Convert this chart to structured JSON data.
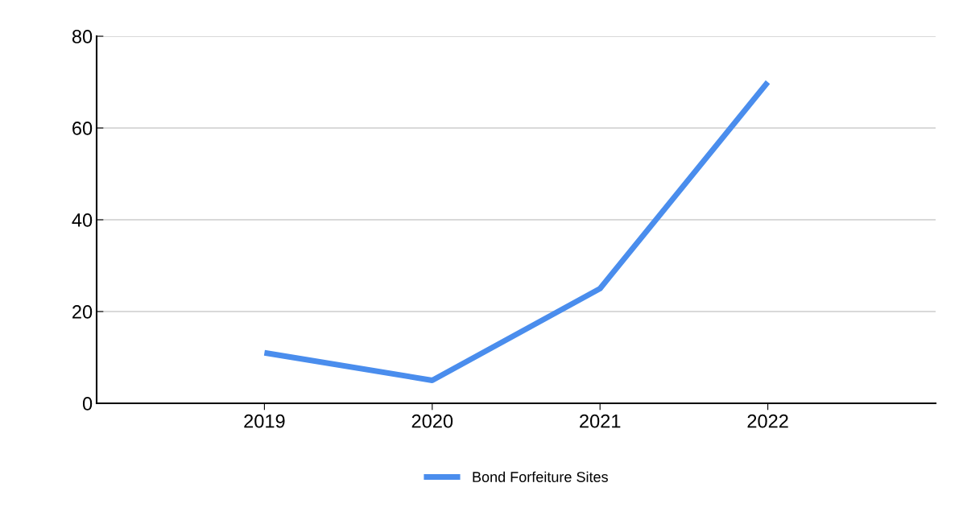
{
  "chart_data": {
    "type": "line",
    "categories": [
      "2019",
      "2020",
      "2021",
      "2022"
    ],
    "series": [
      {
        "name": "Bond Forfeiture Sites",
        "color": "#4a8ded",
        "values": [
          11,
          5,
          25,
          70
        ]
      }
    ],
    "ylim": [
      0,
      80
    ],
    "yticks": [
      0,
      20,
      40,
      60,
      80
    ],
    "grid": "y",
    "legend": "bottom",
    "marker": "none",
    "line_style": "solid"
  }
}
